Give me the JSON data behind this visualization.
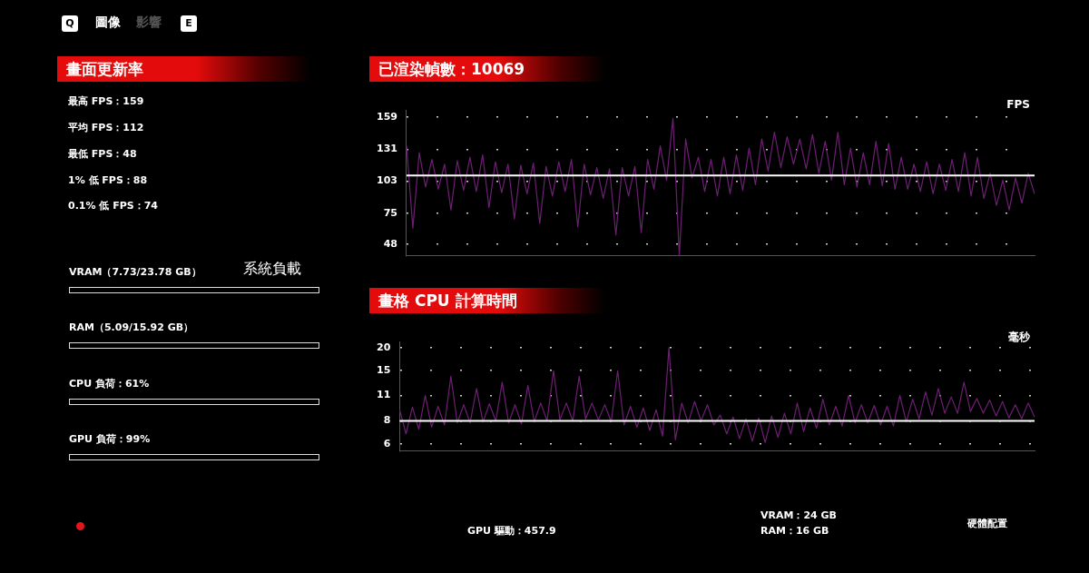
{
  "chart_data": [
    {
      "type": "other",
      "title": "畫面更新率",
      "subtitle": "系統負載",
      "annotations": [
        "Q",
        "圖像",
        "影響",
        "E",
        "最高 FPS：159",
        "平均 FPS：112",
        "最低 FPS：48",
        "1% 低 FPS：88",
        "0.1% 低 FPS：74",
        "VRAM（7.73/23.78 GB）",
        "RAM（5.09/15.92 GB）",
        "CPU 負荷：61%",
        "GPU 負荷：99%"
      ]
    },
    {
      "type": "line",
      "title": "已渲染幀數：10069",
      "ylabel": "FPS",
      "categories": [
        null,
        null,
        null,
        null,
        null,
        null,
        null,
        null,
        null,
        null,
        null,
        null,
        null,
        null,
        null,
        null,
        null,
        null,
        null,
        null,
        null,
        null,
        null,
        null,
        null,
        null,
        null,
        null,
        null,
        null,
        null,
        null,
        null,
        null,
        null,
        null,
        null,
        null,
        null,
        null,
        null,
        null,
        null,
        null,
        null,
        null,
        null,
        null,
        null,
        null,
        null,
        null,
        null,
        null,
        null,
        null,
        null,
        null,
        null,
        null,
        null,
        null,
        null,
        null,
        null,
        null,
        null,
        null,
        null,
        null,
        null,
        null,
        null,
        null,
        null,
        null,
        null,
        null,
        null,
        null,
        null,
        null,
        null,
        null,
        null,
        null,
        null,
        null,
        null,
        null,
        null,
        null,
        null,
        null,
        null,
        null,
        null,
        null,
        null,
        null
      ],
      "series": [
        {
          "color": "#6e1f74",
          "values": [
            134,
            62,
            128,
            98,
            122,
            96,
            118,
            78,
            121,
            95,
            124,
            94,
            126,
            80,
            120,
            93,
            118,
            70,
            117,
            92,
            119,
            66,
            116,
            90,
            120,
            94,
            122,
            63,
            118,
            91,
            115,
            88,
            114,
            56,
            115,
            90,
            116,
            58,
            122,
            96,
            134,
            104,
            158,
            38,
            140,
            106,
            124,
            94,
            122,
            90,
            124,
            92,
            126,
            95,
            132,
            100,
            140,
            112,
            146,
            115,
            142,
            118,
            140,
            114,
            144,
            110,
            138,
            104,
            146,
            100,
            132,
            98,
            128,
            100,
            138,
            99,
            136,
            96,
            124,
            96,
            118,
            94,
            120,
            92,
            118,
            95,
            122,
            94,
            128,
            90,
            124,
            88,
            110,
            82,
            104,
            78,
            106,
            84,
            110,
            92
          ]
        }
      ],
      "ylim": [
        38,
        165
      ],
      "yticks": [
        48,
        75,
        103,
        131,
        159
      ],
      "grid": "y",
      "ref_lines": [
        {
          "axis": "y",
          "value": 108,
          "color": "#ffffff"
        }
      ],
      "legend": false,
      "marker": "none",
      "tick_labels": "y"
    },
    {
      "type": "line",
      "title": "畫格 CPU 計算時間",
      "ylabel": "毫秒",
      "categories": [
        null,
        null,
        null,
        null,
        null,
        null,
        null,
        null,
        null,
        null,
        null,
        null,
        null,
        null,
        null,
        null,
        null,
        null,
        null,
        null,
        null,
        null,
        null,
        null,
        null,
        null,
        null,
        null,
        null,
        null,
        null,
        null,
        null,
        null,
        null,
        null,
        null,
        null,
        null,
        null,
        null,
        null,
        null,
        null,
        null,
        null,
        null,
        null,
        null,
        null,
        null,
        null,
        null,
        null,
        null,
        null,
        null,
        null,
        null,
        null,
        null,
        null,
        null,
        null,
        null,
        null,
        null,
        null,
        null,
        null,
        null,
        null,
        null,
        null,
        null,
        null,
        null,
        null,
        null,
        null,
        null,
        null,
        null,
        null,
        null,
        null,
        null,
        null,
        null,
        null,
        null,
        null,
        null,
        null,
        null,
        null,
        null,
        null,
        null,
        null
      ],
      "series": [
        {
          "color": "#6e1f74",
          "values": [
            9.2,
            6.8,
            9.5,
            7.2,
            11,
            7.4,
            9.6,
            7.6,
            14,
            7.8,
            9.8,
            7.8,
            12,
            7.9,
            9.9,
            8,
            13,
            7.8,
            9.8,
            7.7,
            12.5,
            7.9,
            10,
            8,
            15,
            8.1,
            10,
            8,
            14,
            8.2,
            10,
            8.1,
            9.8,
            7.9,
            15,
            7.6,
            9.6,
            7.4,
            9.4,
            7.1,
            9.2,
            6.6,
            20,
            6.3,
            10,
            7.8,
            10.2,
            8,
            9.8,
            7.6,
            8.6,
            6.8,
            8.4,
            6.4,
            8.2,
            6.2,
            8.3,
            6.1,
            8.5,
            6.5,
            8.8,
            6.8,
            10,
            7,
            9.4,
            7.3,
            10.5,
            7.6,
            9.6,
            7.5,
            11,
            7.8,
            9.8,
            7.8,
            9.7,
            7.6,
            9.6,
            7.5,
            11,
            7.9,
            10.5,
            8.2,
            11.5,
            8.6,
            12,
            8.8,
            10.8,
            8.8,
            13,
            9,
            10.6,
            8.8,
            10.4,
            8.5,
            10.2,
            8.3,
            9.8,
            8.2,
            10,
            8.4
          ]
        }
      ],
      "ylim": [
        5.5,
        21.5
      ],
      "yticks": [
        6,
        8,
        11,
        15,
        20
      ],
      "log": true,
      "grid": "y",
      "ref_lines": [
        {
          "axis": "y",
          "value": 8,
          "color": "#ffffff"
        }
      ],
      "legend": false,
      "marker": "none",
      "tick_labels": "y"
    },
    {
      "type": "other",
      "annotations": [
        "GPU 驅動：457.9",
        "VRAM：24 GB",
        "RAM：16 GB",
        "硬體配置"
      ]
    }
  ]
}
